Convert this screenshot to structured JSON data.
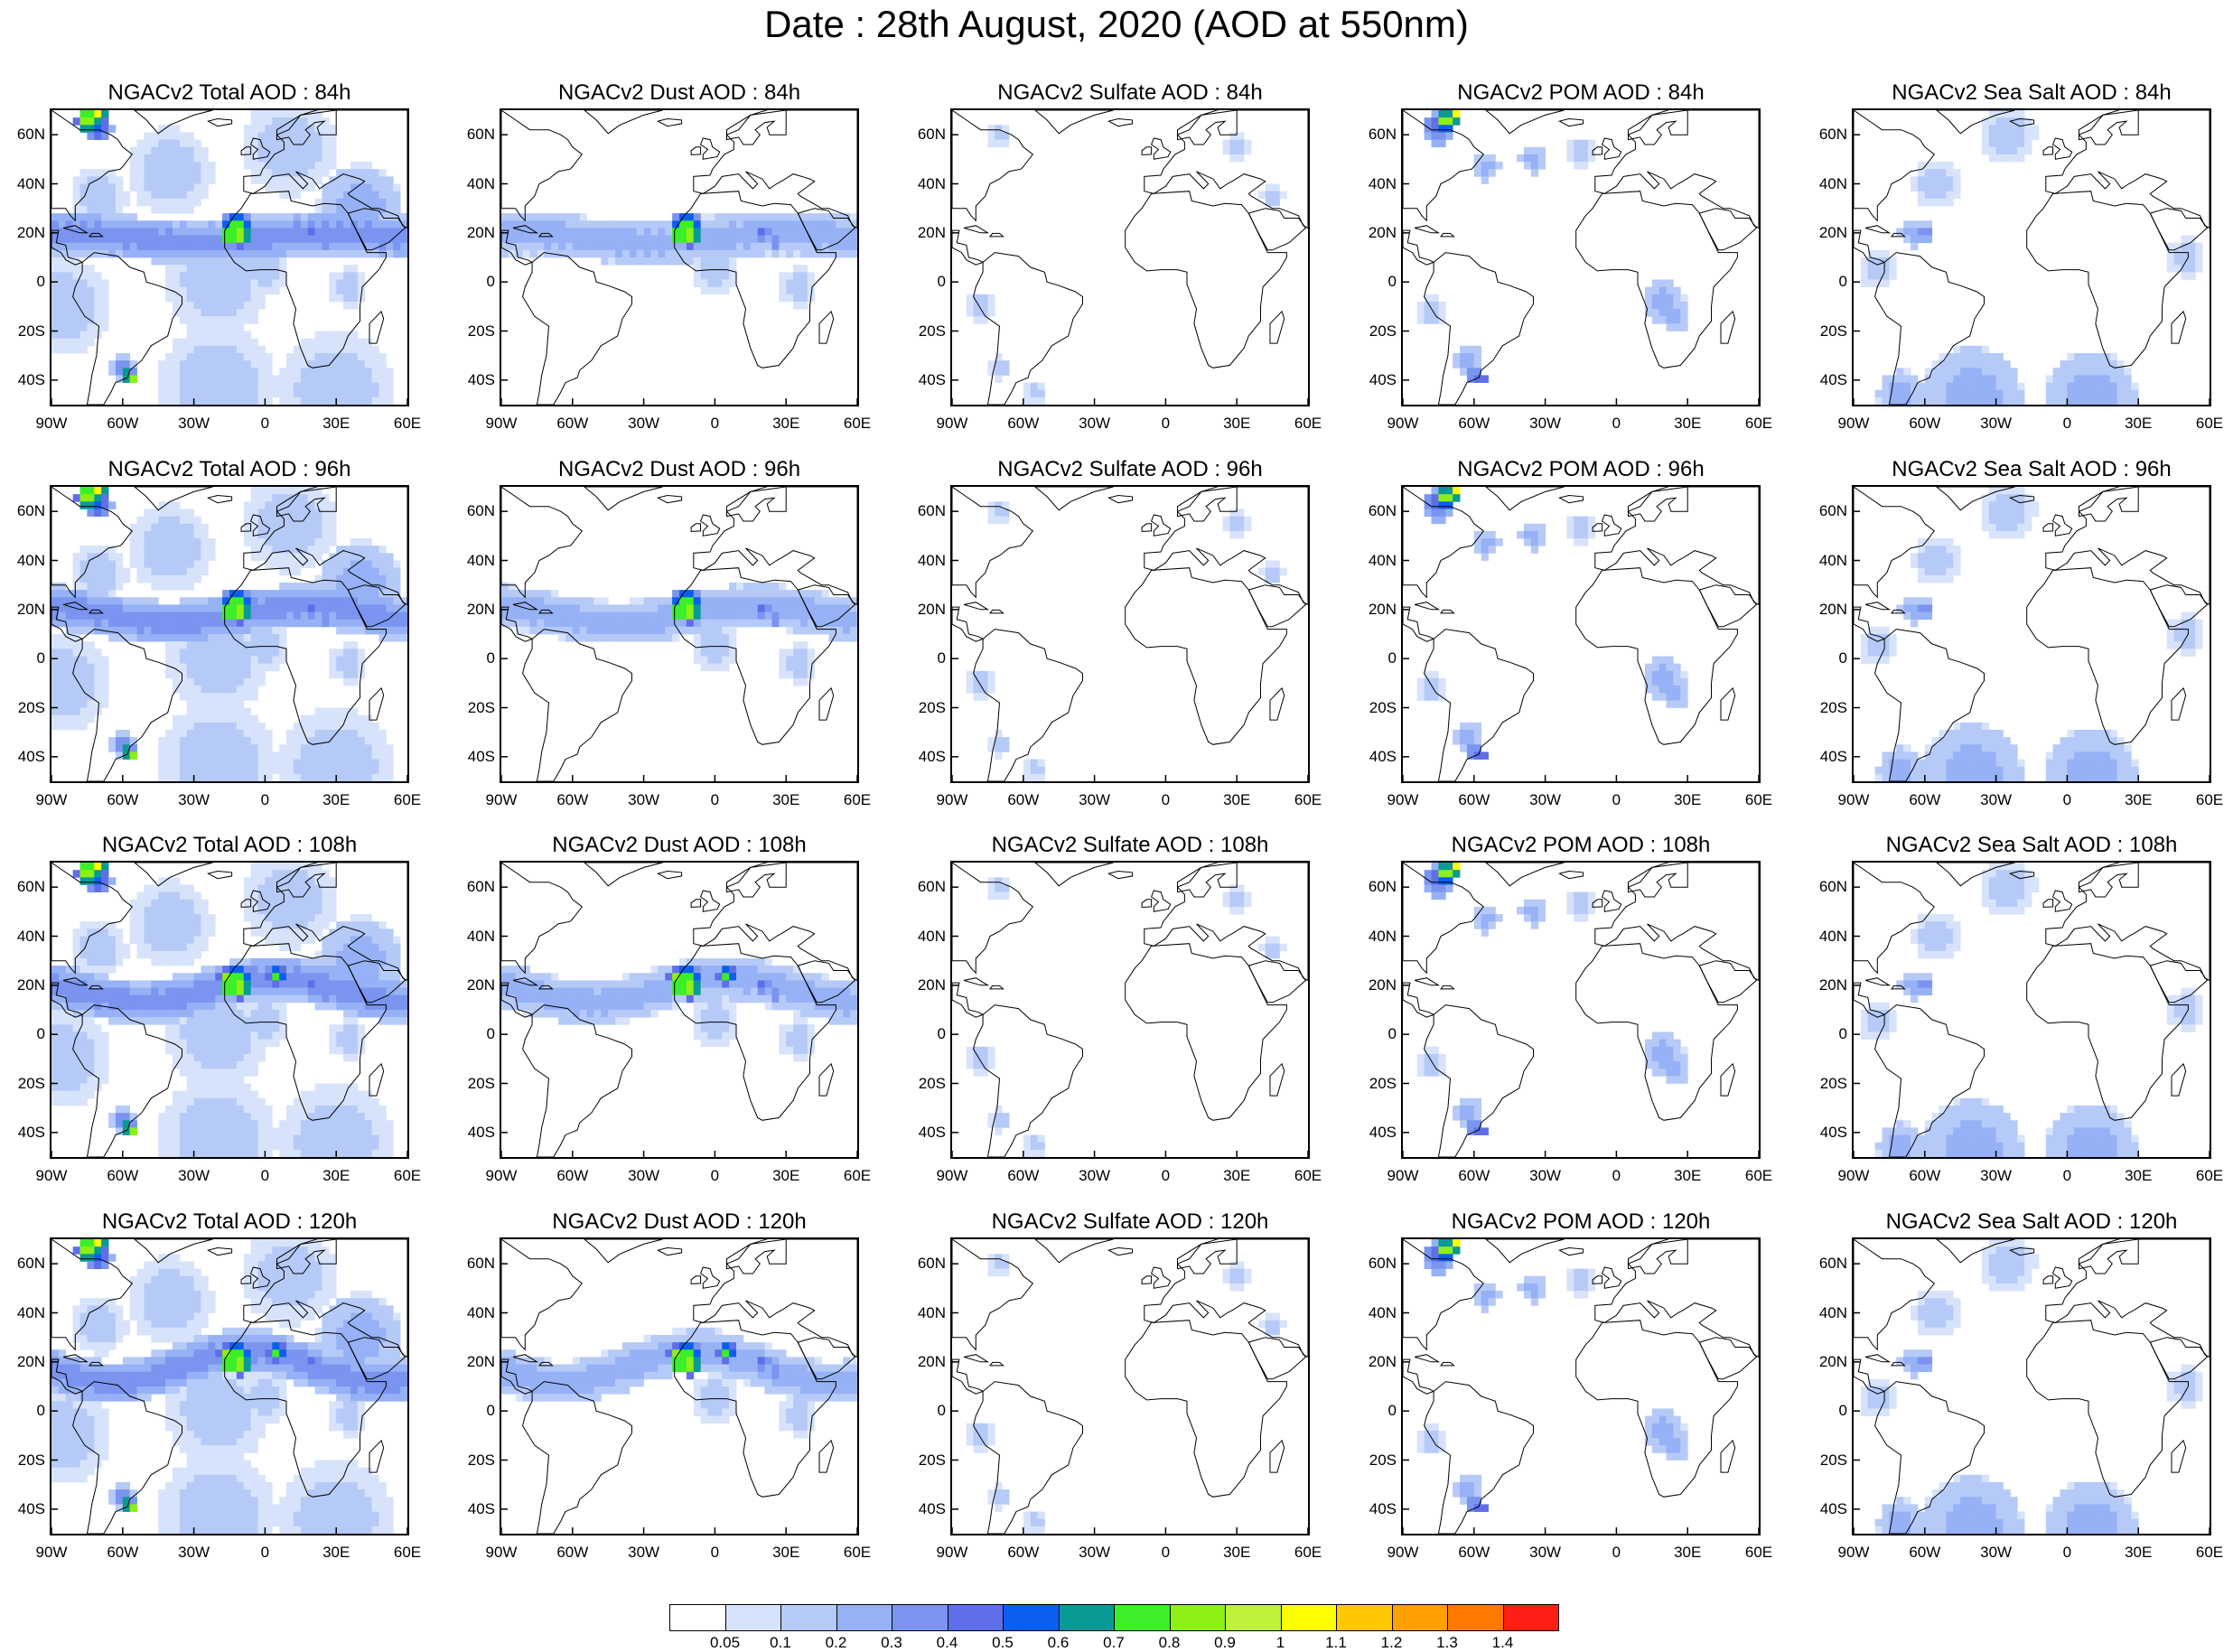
{
  "title": "Date : 28th August, 2020 (AOD at 550nm)",
  "lat_labels": [
    "60N",
    "40N",
    "20N",
    "0",
    "20S",
    "40S"
  ],
  "lat_values": [
    60,
    40,
    20,
    0,
    -20,
    -40
  ],
  "lon_labels": [
    "90W",
    "60W",
    "30W",
    "0",
    "30E",
    "60E"
  ],
  "lon_values": [
    -90,
    -60,
    -30,
    0,
    30,
    60
  ],
  "map_extent": {
    "lon": [
      -90,
      60
    ],
    "lat": [
      -50,
      70
    ]
  },
  "panels": [
    {
      "title": "NGACv2 Total AOD : 84h",
      "species": "total",
      "hour": 84
    },
    {
      "title": "NGACv2 Dust AOD : 84h",
      "species": "dust",
      "hour": 84
    },
    {
      "title": "NGACv2 Sulfate AOD : 84h",
      "species": "sulfate",
      "hour": 84
    },
    {
      "title": "NGACv2 POM AOD : 84h",
      "species": "pom",
      "hour": 84
    },
    {
      "title": "NGACv2 Sea Salt AOD : 84h",
      "species": "seasalt",
      "hour": 84
    },
    {
      "title": "NGACv2 Total AOD : 96h",
      "species": "total",
      "hour": 96
    },
    {
      "title": "NGACv2 Dust AOD : 96h",
      "species": "dust",
      "hour": 96
    },
    {
      "title": "NGACv2 Sulfate AOD : 96h",
      "species": "sulfate",
      "hour": 96
    },
    {
      "title": "NGACv2 POM AOD : 96h",
      "species": "pom",
      "hour": 96
    },
    {
      "title": "NGACv2 Sea Salt AOD : 96h",
      "species": "seasalt",
      "hour": 96
    },
    {
      "title": "NGACv2 Total AOD : 108h",
      "species": "total",
      "hour": 108
    },
    {
      "title": "NGACv2 Dust AOD : 108h",
      "species": "dust",
      "hour": 108
    },
    {
      "title": "NGACv2 Sulfate AOD : 108h",
      "species": "sulfate",
      "hour": 108
    },
    {
      "title": "NGACv2 POM AOD : 108h",
      "species": "pom",
      "hour": 108
    },
    {
      "title": "NGACv2 Sea Salt AOD : 108h",
      "species": "seasalt",
      "hour": 108
    },
    {
      "title": "NGACv2 Total AOD : 120h",
      "species": "total",
      "hour": 120
    },
    {
      "title": "NGACv2 Dust AOD : 120h",
      "species": "dust",
      "hour": 120
    },
    {
      "title": "NGACv2 Sulfate AOD : 120h",
      "species": "sulfate",
      "hour": 120
    },
    {
      "title": "NGACv2 POM AOD : 120h",
      "species": "pom",
      "hour": 120
    },
    {
      "title": "NGACv2 Sea Salt  AOD : 120h",
      "species": "seasalt",
      "hour": 120
    }
  ],
  "colorbar": {
    "labels": [
      "0.05",
      "0.1",
      "0.2",
      "0.3",
      "0.4",
      "0.5",
      "0.6",
      "0.7",
      "0.8",
      "0.9",
      "1",
      "1.1",
      "1.2",
      "1.3",
      "1.4"
    ],
    "colors": [
      "#ffffff",
      "#d7e3fb",
      "#b6caf8",
      "#96b1f5",
      "#7a94f0",
      "#5f6fea",
      "#0a5ff0",
      "#0a9a96",
      "#3cef28",
      "#8cf014",
      "#bef03c",
      "#ffff00",
      "#ffc800",
      "#ffa000",
      "#ff7800",
      "#ff1e14"
    ]
  },
  "colors": {
    "land_outline": "#000000"
  }
}
